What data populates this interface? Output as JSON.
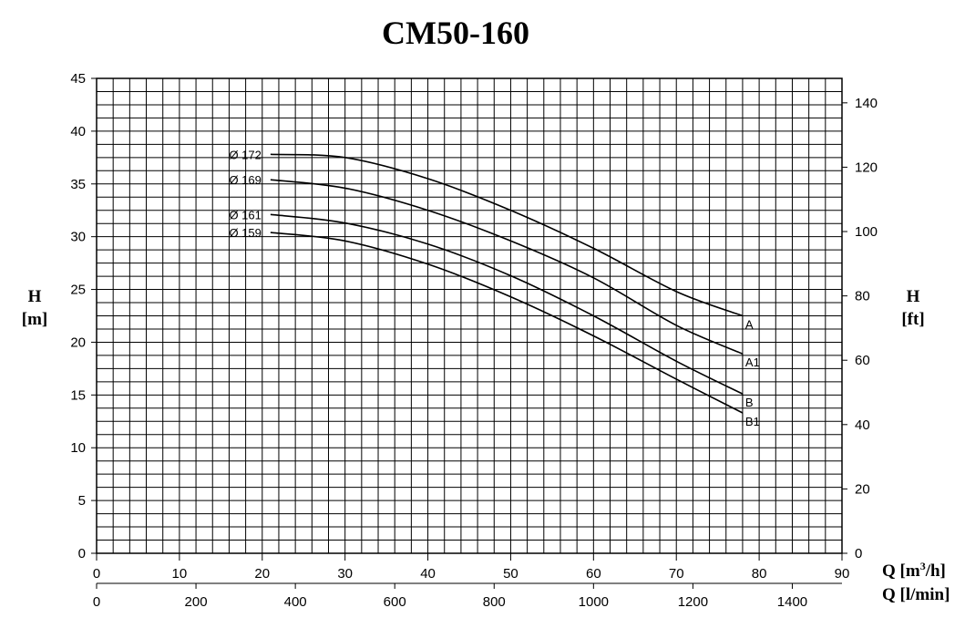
{
  "chart_data": {
    "type": "line",
    "title": "CM50-160",
    "y_left": {
      "label_symbol": "H",
      "label_unit": "[m]",
      "ylim": [
        0,
        45
      ],
      "ticks": [
        0,
        5,
        10,
        15,
        20,
        25,
        30,
        35,
        40,
        45
      ]
    },
    "y_right": {
      "label_symbol": "H",
      "label_unit": "[ft]",
      "ylim_ft": [
        0,
        147.6
      ],
      "ticks": [
        0,
        20,
        40,
        60,
        80,
        100,
        120,
        140
      ]
    },
    "x_m3h": {
      "label": "Q [m³/h]",
      "label_prefix": "Q [m",
      "label_sup": "3",
      "label_suffix": "/h]",
      "xlim": [
        0,
        90
      ],
      "ticks": [
        0,
        10,
        20,
        30,
        40,
        50,
        60,
        70,
        80,
        90
      ]
    },
    "x_lmin": {
      "label": "Q [l/min]",
      "xlim": [
        0,
        1500
      ],
      "ticks": [
        0,
        200,
        400,
        600,
        800,
        1000,
        1200,
        1400
      ]
    },
    "grid": true,
    "series": [
      {
        "name": "A",
        "diameter_label": "Ø 172",
        "x": [
          21,
          30,
          40,
          50,
          60,
          70,
          78
        ],
        "y": [
          37.8,
          37.5,
          35.5,
          32.5,
          28.9,
          24.8,
          22.5
        ]
      },
      {
        "name": "A1",
        "diameter_label": "Ø 169",
        "x": [
          21,
          30,
          40,
          50,
          60,
          70,
          78
        ],
        "y": [
          35.4,
          34.6,
          32.5,
          29.6,
          26.1,
          21.6,
          18.9
        ]
      },
      {
        "name": "B",
        "diameter_label": "Ø 161",
        "x": [
          21,
          30,
          40,
          50,
          60,
          70,
          78
        ],
        "y": [
          32.1,
          31.3,
          29.3,
          26.3,
          22.5,
          18.2,
          15.1
        ]
      },
      {
        "name": "B1",
        "diameter_label": "Ø 159",
        "x": [
          21,
          30,
          40,
          50,
          60,
          70,
          78
        ],
        "y": [
          30.4,
          29.6,
          27.4,
          24.3,
          20.6,
          16.5,
          13.3
        ]
      }
    ]
  }
}
